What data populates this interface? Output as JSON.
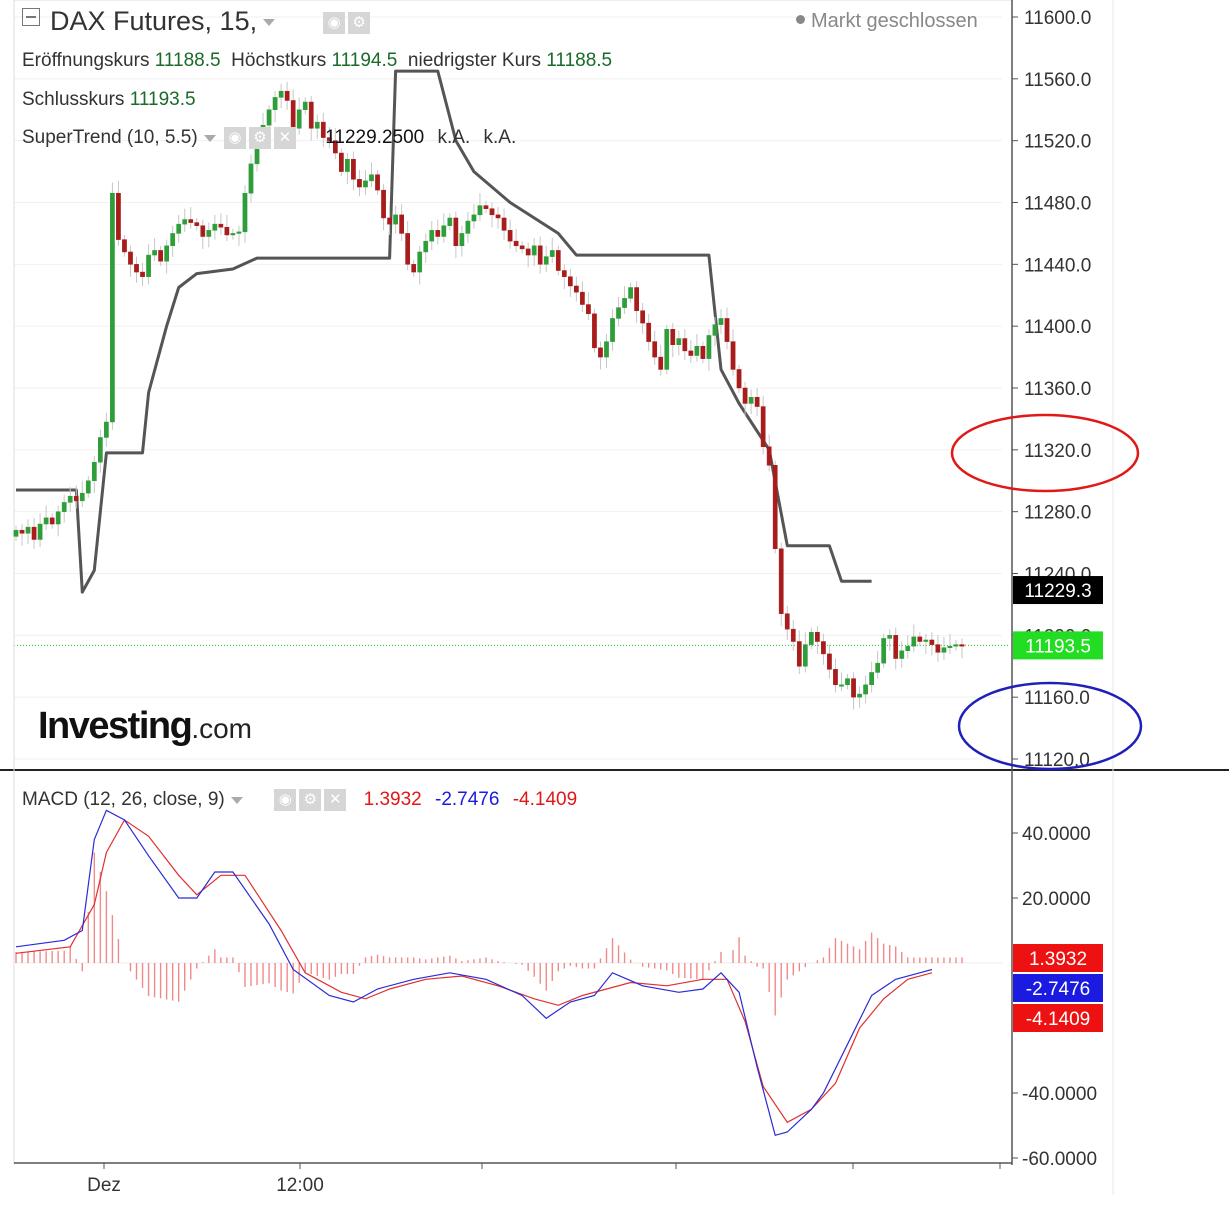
{
  "header": {
    "symbol": "DAX Futures, 15,",
    "market_status": "Markt geschlossen",
    "ohlc": [
      {
        "label": "Eröffnungskurs",
        "value": "11188.5"
      },
      {
        "label": "Höchstkurs",
        "value": "11194.5"
      },
      {
        "label": "niedrigster Kurs",
        "value": "11188.5"
      }
    ],
    "close": {
      "label": "Schlusskurs",
      "value": "11193.5"
    },
    "supertrend": {
      "label": "SuperTrend (10, 5.5)",
      "value": "11229.2500",
      "extra1": "k.A.",
      "extra2": "k.A."
    }
  },
  "logo": {
    "main": "Investing",
    "suffix": ".com"
  },
  "macd_legend": {
    "label": "MACD (12, 26, close, 9)",
    "v1": "1.3932",
    "v2": "-2.7476",
    "v3": "-4.1409"
  },
  "colors": {
    "up": "#2f9e3a",
    "down": "#a81c1c",
    "supertrend": "#555555",
    "macd_line": "#2b2bd6",
    "signal_line": "#e03030",
    "hist": "#f08a8a",
    "ellipse_red": "#e01818",
    "ellipse_blue": "#2020b8",
    "badge_black": "#000000",
    "badge_green": "#22dd22",
    "badge_red": "#ee1111",
    "badge_blue": "#1a1ae0"
  },
  "icons": [
    "collapse-icon",
    "eye-icon",
    "gear-icon",
    "close-icon",
    "dropdown-caret-icon"
  ],
  "chart_data": [
    {
      "type": "candlestick",
      "title": "DAX Futures, 15,",
      "ylim": [
        11100,
        11620
      ],
      "yticks": [
        "11600.0",
        "11560.0",
        "11520.0",
        "11480.0",
        "11440.0",
        "11400.0",
        "11360.0",
        "11320.0",
        "11280.0",
        "11240.0",
        "11200.0",
        "11160.0",
        "11120.0"
      ],
      "x_tick_labels": [
        "Dez",
        "12:00"
      ],
      "last_price": "11193.5",
      "supertrend_value": "11229.3",
      "closes": [
        11268,
        11266,
        11270,
        11262,
        11272,
        11276,
        11272,
        11280,
        11286,
        11290,
        11287,
        11292,
        11300,
        11312,
        11328,
        11338,
        11486,
        11456,
        11448,
        11440,
        11435,
        11432,
        11446,
        11449,
        11442,
        11452,
        11460,
        11466,
        11469,
        11467,
        11465,
        11458,
        11462,
        11466,
        11464,
        11459,
        11460,
        11461,
        11486,
        11505,
        11520,
        11530,
        11540,
        11548,
        11552,
        11546,
        11528,
        11540,
        11545,
        11528,
        11532,
        11522,
        11520,
        11512,
        11500,
        11508,
        11495,
        11490,
        11494,
        11498,
        11488,
        11470,
        11466,
        11472,
        11460,
        11440,
        11435,
        11448,
        11455,
        11462,
        11458,
        11465,
        11470,
        11452,
        11460,
        11468,
        11472,
        11478,
        11476,
        11472,
        11470,
        11462,
        11455,
        11452,
        11450,
        11446,
        11452,
        11440,
        11445,
        11449,
        11436,
        11432,
        11426,
        11422,
        11414,
        11408,
        11386,
        11380,
        11390,
        11405,
        11412,
        11418,
        11425,
        11410,
        11402,
        11390,
        11380,
        11372,
        11398,
        11388,
        11392,
        11384,
        11381,
        11387,
        11379,
        11394,
        11401,
        11405,
        11390,
        11372,
        11360,
        11350,
        11354,
        11348,
        11322,
        11310,
        11256,
        11214,
        11204,
        11196,
        11180,
        11194,
        11202,
        11196,
        11188,
        11178,
        11168,
        11168,
        11172,
        11160,
        11162,
        11168,
        11176,
        11182,
        11198,
        11200,
        11185,
        11190,
        11193,
        11199,
        11196,
        11197,
        11194,
        11189,
        11192,
        11193,
        11194,
        11193
      ],
      "supertrend": [
        {
          "i": 0,
          "v": 11294
        },
        {
          "i": 10,
          "v": 11294
        },
        {
          "i": 11,
          "v": 11228
        },
        {
          "i": 13,
          "v": 11242
        },
        {
          "i": 15,
          "v": 11318
        },
        {
          "i": 21,
          "v": 11318
        },
        {
          "i": 22,
          "v": 11357
        },
        {
          "i": 25,
          "v": 11400
        },
        {
          "i": 27,
          "v": 11425
        },
        {
          "i": 30,
          "v": 11434
        },
        {
          "i": 36,
          "v": 11437
        },
        {
          "i": 40,
          "v": 11444
        },
        {
          "i": 62,
          "v": 11444
        },
        {
          "i": 63,
          "v": 11565
        },
        {
          "i": 70,
          "v": 11565
        },
        {
          "i": 73,
          "v": 11520
        },
        {
          "i": 76,
          "v": 11500
        },
        {
          "i": 82,
          "v": 11480
        },
        {
          "i": 90,
          "v": 11460
        },
        {
          "i": 93,
          "v": 11446
        },
        {
          "i": 115,
          "v": 11446
        },
        {
          "i": 117,
          "v": 11372
        },
        {
          "i": 120,
          "v": 11350
        },
        {
          "i": 125,
          "v": 11320
        },
        {
          "i": 128,
          "v": 11258
        },
        {
          "i": 135,
          "v": 11258
        },
        {
          "i": 137,
          "v": 11235
        },
        {
          "i": 142,
          "v": 11235
        }
      ]
    },
    {
      "type": "macd",
      "title": "MACD (12, 26, close, 9)",
      "ylim": [
        -60,
        50
      ],
      "yticks": [
        "40.0000",
        "20.0000",
        "-40.0000",
        "-60.0000"
      ],
      "values": {
        "histogram": "1.3932",
        "macd": "-2.7476",
        "signal": "-4.1409"
      },
      "macd_points": [
        [
          0,
          5
        ],
        [
          8,
          7
        ],
        [
          11,
          10
        ],
        [
          13,
          38
        ],
        [
          15,
          47
        ],
        [
          18,
          44
        ],
        [
          22,
          33
        ],
        [
          27,
          20
        ],
        [
          30,
          20
        ],
        [
          33,
          28
        ],
        [
          36,
          28
        ],
        [
          42,
          12
        ],
        [
          46,
          -2
        ],
        [
          52,
          -10
        ],
        [
          56,
          -12
        ],
        [
          60,
          -8
        ],
        [
          66,
          -5
        ],
        [
          72,
          -3
        ],
        [
          78,
          -5
        ],
        [
          84,
          -10
        ],
        [
          88,
          -17
        ],
        [
          92,
          -12
        ],
        [
          96,
          -10
        ],
        [
          99,
          -3
        ],
        [
          104,
          -7
        ],
        [
          110,
          -9
        ],
        [
          114,
          -8
        ],
        [
          117,
          -3
        ],
        [
          120,
          -9
        ],
        [
          123,
          -32
        ],
        [
          126,
          -53
        ],
        [
          128,
          -52
        ],
        [
          132,
          -45
        ],
        [
          134,
          -40
        ],
        [
          138,
          -25
        ],
        [
          142,
          -10
        ],
        [
          146,
          -5
        ],
        [
          150,
          -3
        ],
        [
          152,
          -2
        ]
      ],
      "signal_points": [
        [
          0,
          3
        ],
        [
          9,
          5
        ],
        [
          13,
          18
        ],
        [
          15,
          34
        ],
        [
          18,
          44
        ],
        [
          22,
          39
        ],
        [
          27,
          27
        ],
        [
          30,
          21
        ],
        [
          34,
          27
        ],
        [
          38,
          27
        ],
        [
          44,
          10
        ],
        [
          48,
          -3
        ],
        [
          54,
          -9
        ],
        [
          58,
          -11
        ],
        [
          62,
          -8
        ],
        [
          68,
          -5
        ],
        [
          74,
          -4
        ],
        [
          80,
          -7
        ],
        [
          86,
          -11
        ],
        [
          90,
          -13
        ],
        [
          94,
          -10
        ],
        [
          98,
          -8
        ],
        [
          102,
          -6
        ],
        [
          108,
          -7
        ],
        [
          114,
          -5
        ],
        [
          118,
          -5
        ],
        [
          121,
          -18
        ],
        [
          124,
          -38
        ],
        [
          128,
          -49
        ],
        [
          132,
          -45
        ],
        [
          136,
          -37
        ],
        [
          140,
          -20
        ],
        [
          144,
          -11
        ],
        [
          148,
          -5
        ],
        [
          152,
          -3
        ]
      ]
    }
  ]
}
